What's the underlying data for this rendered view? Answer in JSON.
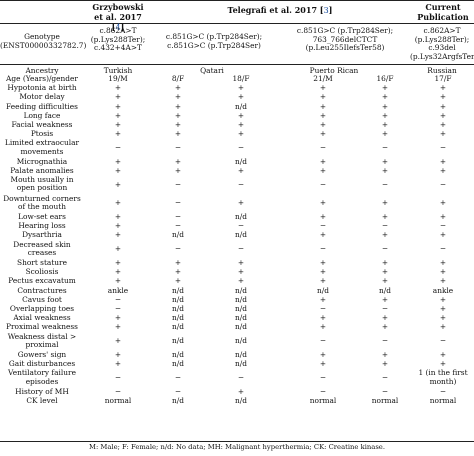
{
  "headers": {
    "grzybowski": "Grzybowski",
    "grzybowski_line2": "et al. 2017 [",
    "grzybowski_ref": "4",
    "telegrafi": "Telegrafi et al. 2017 [",
    "telegrafi_ref": "3",
    "current_line1": "Current",
    "current_line2": "Publication"
  },
  "genotype": {
    "label_line1": "Genotype",
    "label_line2": "(ENST00000332782.7)",
    "col1": [
      "c.862A>T",
      "(p.Lys288Ter);",
      "c.432+4A>T"
    ],
    "col2": [
      "c.851G>C (p.Trp284Ser);",
      "c.851G>C (p.Trp284Ser)"
    ],
    "col3": [
      "c.851G>C (p.Trp284Ser);",
      "763_766delCTCT",
      "(p.Leu255IlefsTer58)"
    ],
    "col4": [
      "c.862A>T",
      "(p.Lys288Ter);",
      "c.93del",
      "(p.Lys32ArgfsTer78)"
    ]
  },
  "ancestry": {
    "label": "Ancestry",
    "turkish": "Turkish",
    "qatari": "Qatari",
    "puerto_rican": "Puerto Rican",
    "russian": "Russian"
  },
  "rows": [
    {
      "label": [
        "Age (Years)/gender"
      ],
      "values": [
        "19/M",
        "8/F",
        "18/F",
        "21/M",
        "16/F",
        "17/F"
      ]
    },
    {
      "label": [
        "Hypotonia at birth"
      ],
      "values": [
        "+",
        "+",
        "+",
        "+",
        "+",
        "+"
      ]
    },
    {
      "label": [
        "Motor delay"
      ],
      "values": [
        "+",
        "+",
        "+",
        "+",
        "+",
        "+"
      ]
    },
    {
      "label": [
        "Feeding difficulties"
      ],
      "values": [
        "+",
        "+",
        "n/d",
        "+",
        "+",
        "+"
      ]
    },
    {
      "label": [
        "Long face"
      ],
      "values": [
        "+",
        "+",
        "+",
        "+",
        "+",
        "+"
      ]
    },
    {
      "label": [
        "Facial weakness"
      ],
      "values": [
        "+",
        "+",
        "+",
        "+",
        "+",
        "+"
      ]
    },
    {
      "label": [
        "Ptosis"
      ],
      "values": [
        "+",
        "+",
        "+",
        "+",
        "+",
        "+"
      ]
    },
    {
      "label": [
        "Limited extraocular",
        "movements"
      ],
      "values": [
        "−",
        "−",
        "−",
        "−",
        "−",
        "−"
      ]
    },
    {
      "label": [
        "Micrognathia"
      ],
      "values": [
        "+",
        "+",
        "n/d",
        "+",
        "+",
        "+"
      ]
    },
    {
      "label": [
        "Palate anomalies"
      ],
      "values": [
        "+",
        "+",
        "+",
        "+",
        "+",
        "+"
      ]
    },
    {
      "label": [
        "Mouth usually in",
        "open position"
      ],
      "values": [
        "+",
        "−",
        "−",
        "−",
        "−",
        "−"
      ]
    },
    {
      "label": [
        "Downturned corners",
        "of the mouth"
      ],
      "values": [
        "+",
        "−",
        "+",
        "+",
        "+",
        "+"
      ]
    },
    {
      "label": [
        "Low-set ears"
      ],
      "values": [
        "+",
        "−",
        "n/d",
        "+",
        "+",
        "+"
      ]
    },
    {
      "label": [
        "Hearing loss"
      ],
      "values": [
        "+",
        "−",
        "−",
        "−",
        "−",
        "−"
      ]
    },
    {
      "label": [
        "Dysarthria"
      ],
      "values": [
        "+",
        "n/d",
        "n/d",
        "+",
        "+",
        "+"
      ]
    },
    {
      "label": [
        "Decreased skin",
        "creases"
      ],
      "values": [
        "+",
        "−",
        "−",
        "−",
        "−",
        "−"
      ]
    },
    {
      "label": [
        "Short stature"
      ],
      "values": [
        "+",
        "+",
        "+",
        "+",
        "+",
        "+"
      ]
    },
    {
      "label": [
        "Scoliosis"
      ],
      "values": [
        "+",
        "+",
        "+",
        "+",
        "+",
        "+"
      ]
    },
    {
      "label": [
        "Pectus excavatum"
      ],
      "values": [
        "+",
        "+",
        "+",
        "+",
        "+",
        "+"
      ]
    },
    {
      "label": [
        "Contractures"
      ],
      "values": [
        "ankle",
        "n/d",
        "n/d",
        "n/d",
        "n/d",
        "ankle"
      ]
    },
    {
      "label": [
        "Cavus foot"
      ],
      "values": [
        "−",
        "n/d",
        "n/d",
        "+",
        "+",
        "+"
      ]
    },
    {
      "label": [
        "Overlapping toes"
      ],
      "values": [
        "−",
        "n/d",
        "n/d",
        "−",
        "−",
        "+"
      ]
    },
    {
      "label": [
        "Axial weakness"
      ],
      "values": [
        "+",
        "n/d",
        "n/d",
        "+",
        "+",
        "+"
      ]
    },
    {
      "label": [
        "Proximal weakness"
      ],
      "values": [
        "+",
        "n/d",
        "n/d",
        "+",
        "+",
        "+"
      ]
    },
    {
      "label": [
        "Weakness distal >",
        "proximal"
      ],
      "values": [
        "+",
        "n/d",
        "n/d",
        "−",
        "−",
        "−"
      ]
    },
    {
      "label": [
        "Gowers' sign"
      ],
      "values": [
        "+",
        "n/d",
        "n/d",
        "+",
        "+",
        "+"
      ]
    },
    {
      "label": [
        "Gait disturbances"
      ],
      "values": [
        "+",
        "n/d",
        "n/d",
        "+",
        "+",
        "+"
      ]
    },
    {
      "label": [
        "Ventilatory failure",
        "episodes"
      ],
      "values": [
        "−",
        "−",
        "−",
        "−",
        "−",
        "1 (in the first month)"
      ]
    },
    {
      "label": [
        "History of MH"
      ],
      "values": [
        "−",
        "−",
        "+",
        "−",
        "−",
        "−"
      ]
    },
    {
      "label": [
        "CK level"
      ],
      "values": [
        "normal",
        "n/d",
        "n/d",
        "normal",
        "normal",
        "normal"
      ]
    }
  ],
  "footnote": "M: Male; F: Female; n/d: No data; MH: Malignant hyperthermia; CK: Creatine kinase."
}
